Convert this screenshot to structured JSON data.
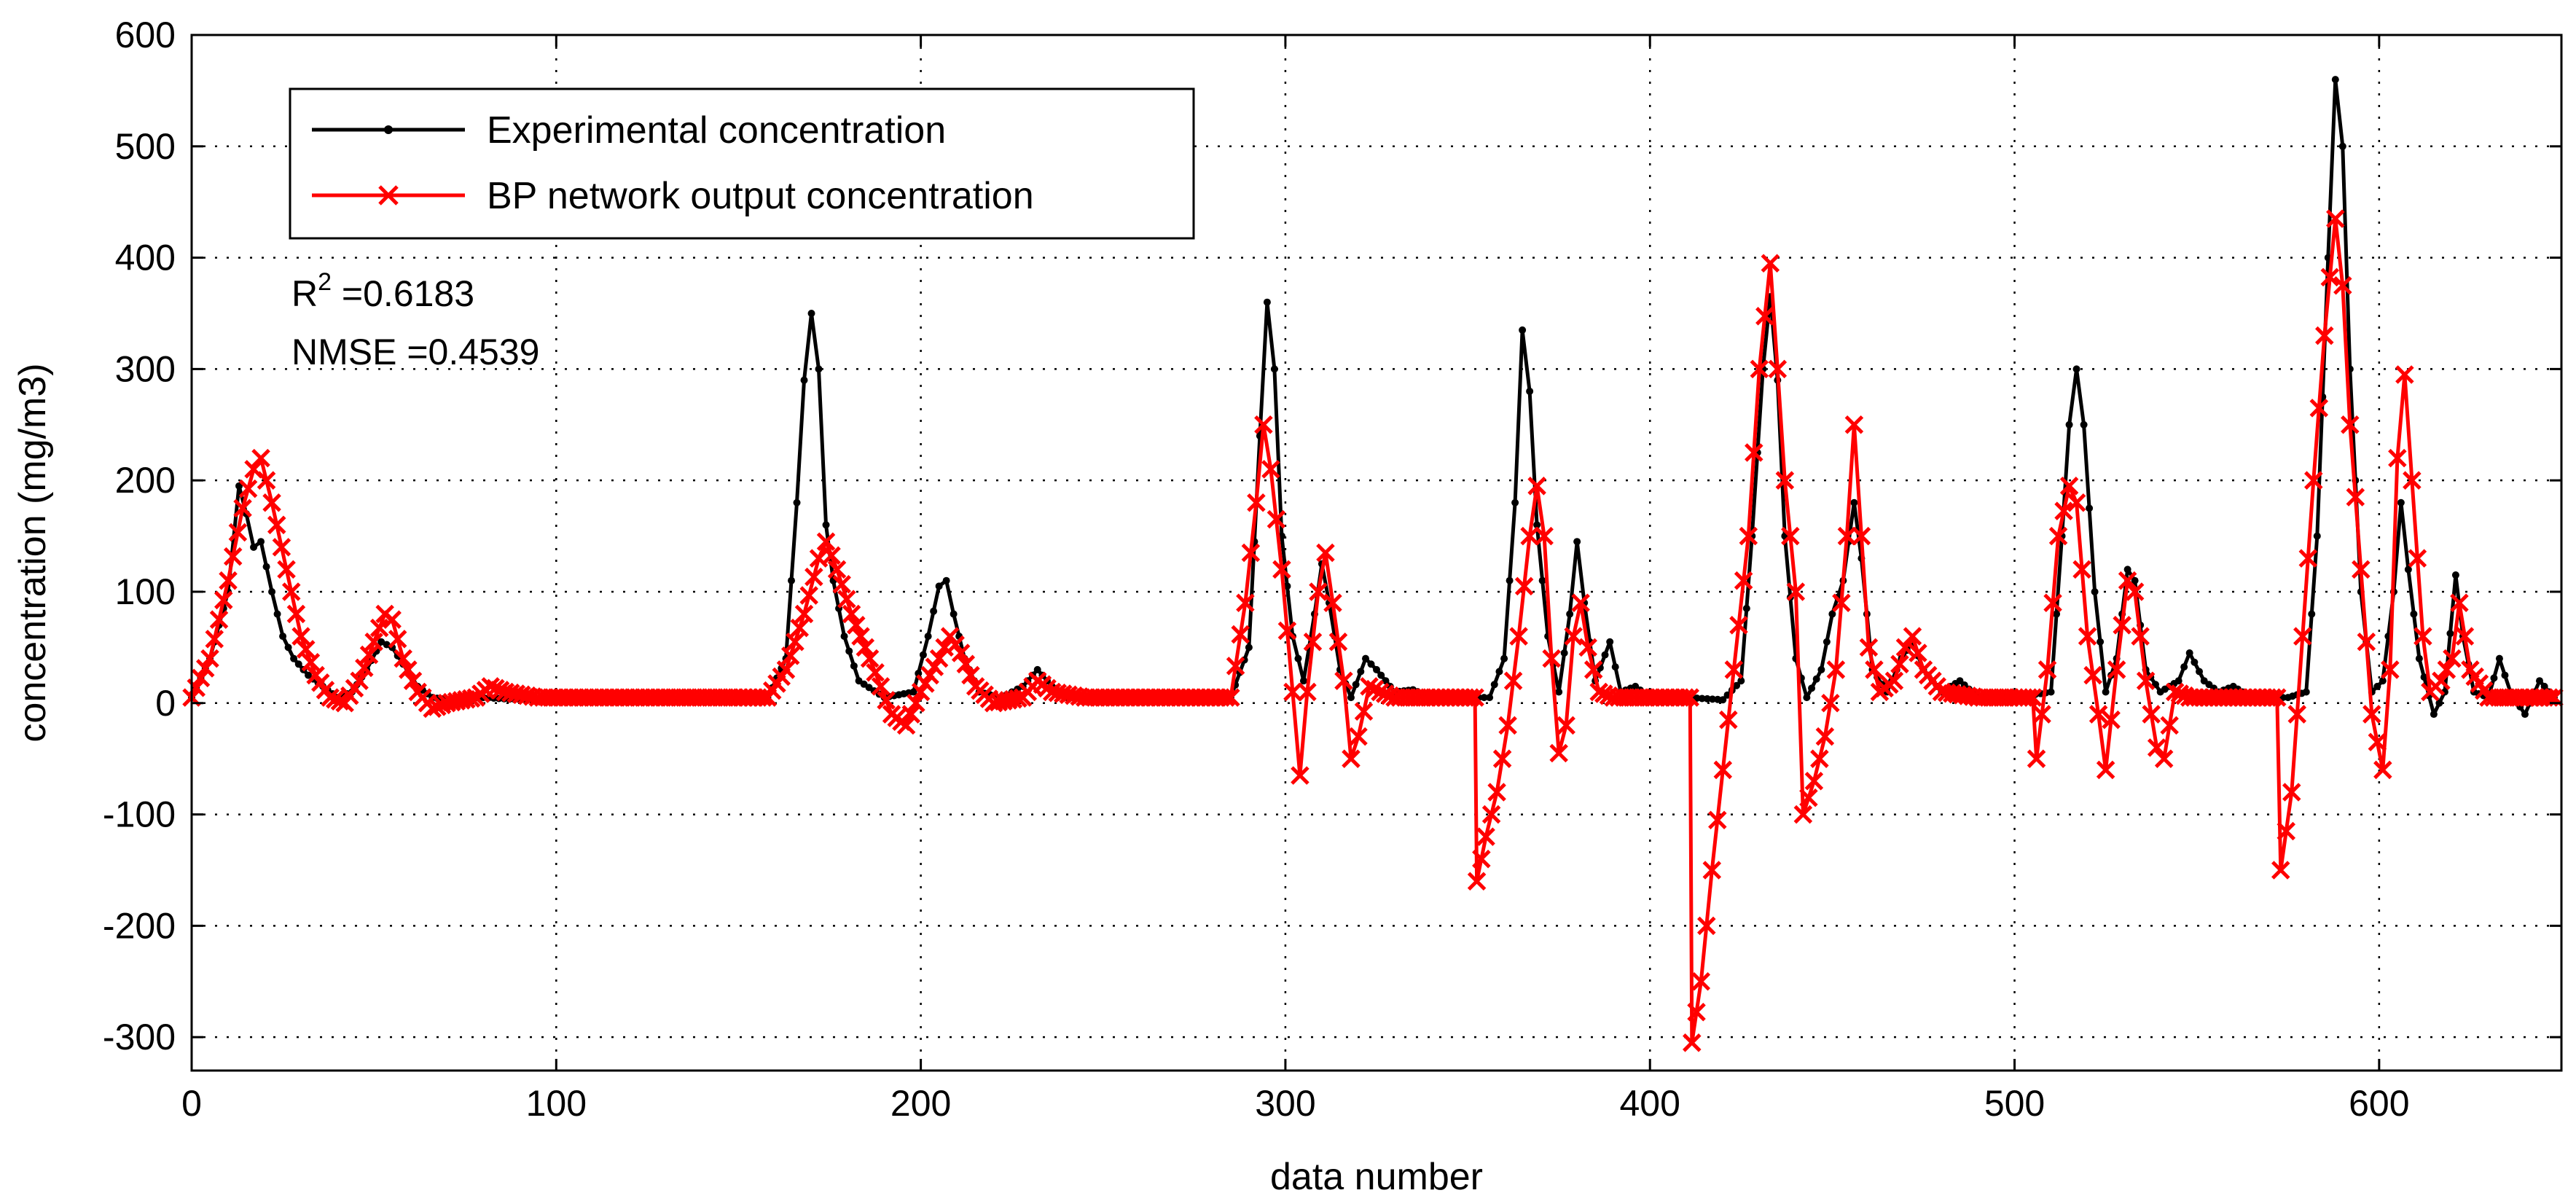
{
  "chart_data": {
    "type": "line",
    "title": "",
    "xlabel": "data number",
    "ylabel": "concentration (mg/m3)",
    "xlim": [
      0,
      650
    ],
    "ylim": [
      -330,
      600
    ],
    "xticks": [
      0,
      100,
      200,
      300,
      400,
      500,
      600
    ],
    "yticks": [
      -300,
      -200,
      -100,
      0,
      100,
      200,
      300,
      400,
      500,
      600
    ],
    "grid": true,
    "legend_position": "top-left",
    "annotations": {
      "r2_prefix": "R",
      "r2_sup": "2",
      "r2_value": " =0.6183",
      "nmse": "NMSE =0.4539"
    },
    "colors": {
      "experimental": "#000000",
      "bp": "#ff0000"
    },
    "series": [
      {
        "name": "Experimental concentration",
        "marker": "dot",
        "points": [
          [
            0,
            5
          ],
          [
            5,
            40
          ],
          [
            10,
            100
          ],
          [
            13,
            195
          ],
          [
            15,
            170
          ],
          [
            17,
            140
          ],
          [
            19,
            145
          ],
          [
            22,
            100
          ],
          [
            25,
            60
          ],
          [
            28,
            40
          ],
          [
            32,
            25
          ],
          [
            36,
            15
          ],
          [
            40,
            5
          ],
          [
            44,
            10
          ],
          [
            48,
            30
          ],
          [
            52,
            55
          ],
          [
            55,
            50
          ],
          [
            58,
            35
          ],
          [
            62,
            15
          ],
          [
            66,
            5
          ],
          [
            70,
            3
          ],
          [
            80,
            5
          ],
          [
            90,
            3
          ],
          [
            100,
            5
          ],
          [
            120,
            3
          ],
          [
            140,
            3
          ],
          [
            158,
            5
          ],
          [
            163,
            40
          ],
          [
            166,
            180
          ],
          [
            168,
            290
          ],
          [
            170,
            350
          ],
          [
            172,
            300
          ],
          [
            174,
            160
          ],
          [
            176,
            110
          ],
          [
            179,
            60
          ],
          [
            183,
            20
          ],
          [
            190,
            5
          ],
          [
            198,
            10
          ],
          [
            202,
            60
          ],
          [
            205,
            105
          ],
          [
            207,
            110
          ],
          [
            209,
            80
          ],
          [
            212,
            40
          ],
          [
            216,
            10
          ],
          [
            222,
            5
          ],
          [
            228,
            15
          ],
          [
            232,
            30
          ],
          [
            236,
            15
          ],
          [
            240,
            5
          ],
          [
            260,
            5
          ],
          [
            285,
            5
          ],
          [
            290,
            50
          ],
          [
            293,
            240
          ],
          [
            295,
            360
          ],
          [
            297,
            300
          ],
          [
            299,
            150
          ],
          [
            302,
            60
          ],
          [
            305,
            20
          ],
          [
            308,
            80
          ],
          [
            310,
            125
          ],
          [
            312,
            90
          ],
          [
            315,
            30
          ],
          [
            318,
            5
          ],
          [
            322,
            40
          ],
          [
            325,
            30
          ],
          [
            330,
            10
          ],
          [
            335,
            12
          ],
          [
            340,
            5
          ],
          [
            350,
            5
          ],
          [
            356,
            5
          ],
          [
            360,
            40
          ],
          [
            363,
            180
          ],
          [
            365,
            335
          ],
          [
            367,
            280
          ],
          [
            369,
            160
          ],
          [
            372,
            60
          ],
          [
            375,
            10
          ],
          [
            378,
            80
          ],
          [
            380,
            145
          ],
          [
            382,
            90
          ],
          [
            385,
            20
          ],
          [
            389,
            55
          ],
          [
            392,
            10
          ],
          [
            396,
            15
          ],
          [
            400,
            5
          ],
          [
            410,
            5
          ],
          [
            420,
            3
          ],
          [
            425,
            20
          ],
          [
            428,
            150
          ],
          [
            431,
            300
          ],
          [
            433,
            365
          ],
          [
            435,
            290
          ],
          [
            437,
            150
          ],
          [
            440,
            40
          ],
          [
            443,
            5
          ],
          [
            447,
            30
          ],
          [
            450,
            80
          ],
          [
            453,
            110
          ],
          [
            456,
            180
          ],
          [
            458,
            130
          ],
          [
            461,
            30
          ],
          [
            465,
            10
          ],
          [
            469,
            40
          ],
          [
            472,
            55
          ],
          [
            475,
            30
          ],
          [
            480,
            10
          ],
          [
            485,
            20
          ],
          [
            490,
            5
          ],
          [
            500,
            5
          ],
          [
            510,
            10
          ],
          [
            513,
            150
          ],
          [
            515,
            250
          ],
          [
            517,
            300
          ],
          [
            519,
            250
          ],
          [
            522,
            100
          ],
          [
            525,
            10
          ],
          [
            528,
            40
          ],
          [
            531,
            120
          ],
          [
            533,
            110
          ],
          [
            536,
            30
          ],
          [
            540,
            10
          ],
          [
            545,
            20
          ],
          [
            548,
            45
          ],
          [
            552,
            20
          ],
          [
            556,
            10
          ],
          [
            560,
            15
          ],
          [
            565,
            5
          ],
          [
            575,
            5
          ],
          [
            580,
            10
          ],
          [
            583,
            150
          ],
          [
            586,
            400
          ],
          [
            588,
            560
          ],
          [
            590,
            500
          ],
          [
            592,
            300
          ],
          [
            595,
            100
          ],
          [
            598,
            10
          ],
          [
            601,
            20
          ],
          [
            604,
            100
          ],
          [
            606,
            180
          ],
          [
            608,
            120
          ],
          [
            611,
            40
          ],
          [
            615,
            -10
          ],
          [
            618,
            10
          ],
          [
            621,
            115
          ],
          [
            623,
            60
          ],
          [
            626,
            10
          ],
          [
            630,
            5
          ],
          [
            633,
            40
          ],
          [
            636,
            10
          ],
          [
            640,
            -10
          ],
          [
            644,
            20
          ],
          [
            648,
            5
          ]
        ]
      },
      {
        "name": "BP network output concentration",
        "marker": "x",
        "points": [
          [
            0,
            5
          ],
          [
            5,
            40
          ],
          [
            10,
            110
          ],
          [
            14,
            175
          ],
          [
            17,
            210
          ],
          [
            19,
            220
          ],
          [
            22,
            180
          ],
          [
            26,
            120
          ],
          [
            30,
            60
          ],
          [
            34,
            25
          ],
          [
            38,
            5
          ],
          [
            42,
            0
          ],
          [
            46,
            20
          ],
          [
            50,
            55
          ],
          [
            53,
            80
          ],
          [
            55,
            75
          ],
          [
            58,
            40
          ],
          [
            62,
            10
          ],
          [
            66,
            -5
          ],
          [
            70,
            0
          ],
          [
            78,
            5
          ],
          [
            82,
            15
          ],
          [
            86,
            10
          ],
          [
            95,
            5
          ],
          [
            130,
            5
          ],
          [
            150,
            5
          ],
          [
            158,
            5
          ],
          [
            163,
            30
          ],
          [
            168,
            80
          ],
          [
            172,
            130
          ],
          [
            174,
            145
          ],
          [
            177,
            120
          ],
          [
            181,
            80
          ],
          [
            186,
            40
          ],
          [
            192,
            -10
          ],
          [
            196,
            -20
          ],
          [
            200,
            10
          ],
          [
            205,
            40
          ],
          [
            208,
            60
          ],
          [
            211,
            45
          ],
          [
            215,
            15
          ],
          [
            220,
            0
          ],
          [
            228,
            5
          ],
          [
            232,
            20
          ],
          [
            236,
            10
          ],
          [
            245,
            5
          ],
          [
            270,
            5
          ],
          [
            285,
            5
          ],
          [
            289,
            90
          ],
          [
            292,
            180
          ],
          [
            294,
            250
          ],
          [
            296,
            210
          ],
          [
            299,
            120
          ],
          [
            302,
            10
          ],
          [
            304,
            -65
          ],
          [
            306,
            10
          ],
          [
            309,
            100
          ],
          [
            311,
            135
          ],
          [
            313,
            90
          ],
          [
            316,
            20
          ],
          [
            318,
            -50
          ],
          [
            320,
            -30
          ],
          [
            323,
            15
          ],
          [
            326,
            10
          ],
          [
            330,
            5
          ],
          [
            340,
            5
          ],
          [
            352,
            5
          ],
          [
            352.5,
            -160
          ],
          [
            355,
            -120
          ],
          [
            358,
            -80
          ],
          [
            361,
            -20
          ],
          [
            364,
            60
          ],
          [
            367,
            150
          ],
          [
            369,
            195
          ],
          [
            371,
            150
          ],
          [
            373,
            40
          ],
          [
            375,
            -45
          ],
          [
            377,
            -20
          ],
          [
            379,
            60
          ],
          [
            381,
            90
          ],
          [
            383,
            50
          ],
          [
            386,
            10
          ],
          [
            390,
            5
          ],
          [
            400,
            5
          ],
          [
            411,
            5
          ],
          [
            411.5,
            -305
          ],
          [
            414,
            -250
          ],
          [
            417,
            -150
          ],
          [
            420,
            -60
          ],
          [
            423,
            30
          ],
          [
            427,
            150
          ],
          [
            430,
            300
          ],
          [
            433,
            395
          ],
          [
            435,
            300
          ],
          [
            437,
            200
          ],
          [
            440,
            100
          ],
          [
            442,
            -100
          ],
          [
            445,
            -70
          ],
          [
            448,
            -30
          ],
          [
            451,
            30
          ],
          [
            454,
            150
          ],
          [
            456,
            250
          ],
          [
            458,
            150
          ],
          [
            460,
            50
          ],
          [
            463,
            10
          ],
          [
            467,
            20
          ],
          [
            470,
            50
          ],
          [
            472,
            60
          ],
          [
            475,
            30
          ],
          [
            480,
            10
          ],
          [
            490,
            5
          ],
          [
            500,
            5
          ],
          [
            505,
            5
          ],
          [
            506,
            -50
          ],
          [
            509,
            30
          ],
          [
            512,
            150
          ],
          [
            515,
            195
          ],
          [
            517,
            180
          ],
          [
            520,
            60
          ],
          [
            523,
            -10
          ],
          [
            525,
            -60
          ],
          [
            528,
            30
          ],
          [
            531,
            110
          ],
          [
            533,
            100
          ],
          [
            536,
            20
          ],
          [
            539,
            -40
          ],
          [
            541,
            -50
          ],
          [
            544,
            10
          ],
          [
            548,
            5
          ],
          [
            560,
            5
          ],
          [
            572,
            5
          ],
          [
            573,
            -150
          ],
          [
            576,
            -80
          ],
          [
            579,
            60
          ],
          [
            582,
            200
          ],
          [
            585,
            330
          ],
          [
            588,
            435
          ],
          [
            590,
            375
          ],
          [
            592,
            250
          ],
          [
            595,
            120
          ],
          [
            598,
            -10
          ],
          [
            601,
            -60
          ],
          [
            603,
            30
          ],
          [
            605,
            220
          ],
          [
            607,
            295
          ],
          [
            609,
            200
          ],
          [
            612,
            60
          ],
          [
            614,
            10
          ],
          [
            617,
            20
          ],
          [
            620,
            40
          ],
          [
            622,
            90
          ],
          [
            625,
            30
          ],
          [
            630,
            5
          ],
          [
            640,
            5
          ],
          [
            648,
            5
          ]
        ]
      }
    ]
  }
}
